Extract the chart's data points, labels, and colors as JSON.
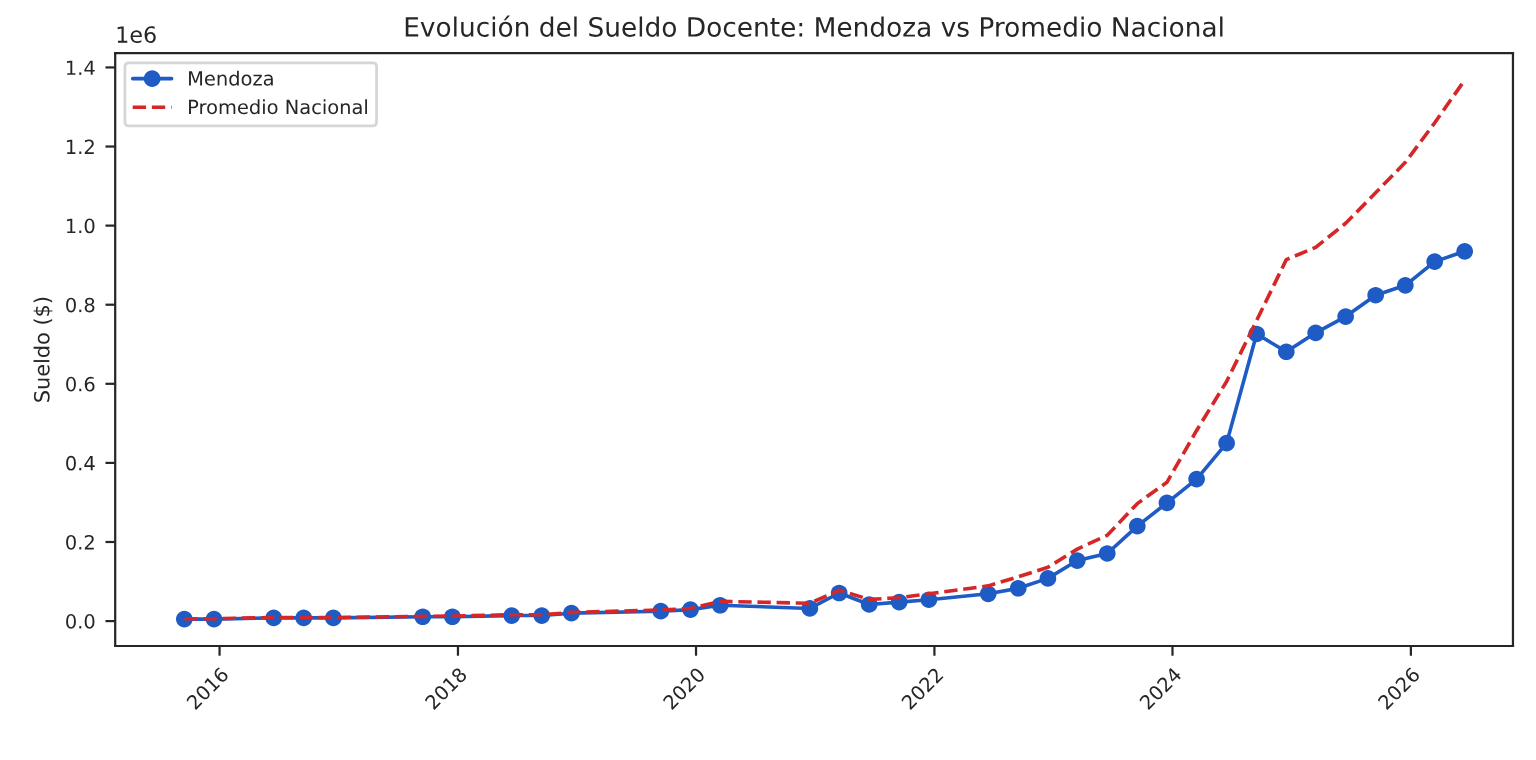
{
  "chart_data": {
    "type": "line",
    "title": "Evolución del Sueldo Docente: Mendoza vs Promedio Nacional",
    "ylabel": "Sueldo ($)",
    "x": [
      "2015-09",
      "2015-12",
      "2016-06",
      "2016-09",
      "2016-12",
      "2017-09",
      "2017-12",
      "2018-06",
      "2018-09",
      "2018-12",
      "2019-09",
      "2019-12",
      "2020-03",
      "2020-12",
      "2021-03",
      "2021-06",
      "2021-09",
      "2021-12",
      "2022-06",
      "2022-09",
      "2022-12",
      "2023-03",
      "2023-06",
      "2023-09",
      "2023-12",
      "2024-03",
      "2024-06",
      "2024-09",
      "2024-12",
      "2025-03",
      "2025-06",
      "2025-09",
      "2025-12",
      "2026-03",
      "2026-06"
    ],
    "series": [
      {
        "name": "Mendoza",
        "color": "#1f5bc4",
        "marker": "circle",
        "line_style": "solid",
        "values": [
          0.005,
          0.005,
          0.008,
          0.008,
          0.008,
          0.011,
          0.011,
          0.014,
          0.014,
          0.02,
          0.025,
          0.029,
          0.04,
          0.032,
          0.071,
          0.042,
          0.048,
          0.054,
          0.069,
          0.083,
          0.108,
          0.153,
          0.171,
          0.24,
          0.299,
          0.359,
          0.45,
          0.726,
          0.681,
          0.729,
          0.77,
          0.824,
          0.849,
          0.909,
          0.935
        ]
      },
      {
        "name": "Promedio Nacional",
        "color": "#d62728",
        "marker": "none",
        "line_style": "dashed",
        "values": [
          0.006,
          0.006,
          0.009,
          0.009,
          0.009,
          0.012,
          0.013,
          0.016,
          0.016,
          0.022,
          0.028,
          0.032,
          0.05,
          0.045,
          0.078,
          0.055,
          0.059,
          0.069,
          0.089,
          0.112,
          0.136,
          0.182,
          0.217,
          0.297,
          0.351,
          0.482,
          0.606,
          0.76,
          0.914,
          0.945,
          1.006,
          1.083,
          1.16,
          1.26,
          1.368
        ]
      }
    ],
    "xlim": [
      "2015-02-15",
      "2026-11-10"
    ],
    "xticks": [
      {
        "value": "2016-01-01",
        "label": "2016"
      },
      {
        "value": "2018-01-01",
        "label": "2018"
      },
      {
        "value": "2020-01-01",
        "label": "2020"
      },
      {
        "value": "2022-01-01",
        "label": "2022"
      },
      {
        "value": "2024-01-01",
        "label": "2024"
      },
      {
        "value": "2026-01-01",
        "label": "2026"
      }
    ],
    "ylim": [
      -0.063,
      1.436
    ],
    "yticks": [
      {
        "value": 0,
        "label": "0.0"
      },
      0.2,
      0.4,
      0.6,
      0.8,
      {
        "value": 1,
        "label": "1.0"
      },
      1.2,
      1.4
    ],
    "annotations": [
      "1e6"
    ],
    "legend": "top left",
    "grid": false
  }
}
